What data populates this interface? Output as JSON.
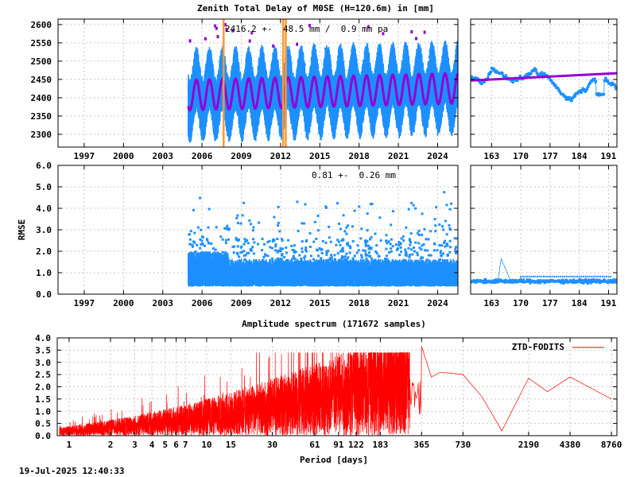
{
  "chart_data": [
    {
      "type": "scatter",
      "title": "Zenith Total Delay of M0SE (H=120.6m) in [mm]",
      "annotation": "2416.2 +-  48.5 mm /  0.9 mm pa",
      "xlabel": "",
      "ylabel": "",
      "xlim": [
        1995.0,
        2025.55
      ],
      "ylim": [
        2265,
        2615
      ],
      "x_ticks": [
        "1997",
        "2000",
        "2003",
        "2006",
        "2009",
        "2012",
        "2015",
        "2018",
        "2021",
        "2024"
      ],
      "y_ticks": [
        "2300",
        "2350",
        "2400",
        "2450",
        "2500",
        "2550",
        "2600"
      ],
      "data_start": 2004.95,
      "mean": 2416.2,
      "annual_amplitude": 48.5,
      "trend_per_year": 0.9,
      "series": [
        {
          "kind": "zenith-delay-samples",
          "color": "#1e90ff"
        },
        {
          "kind": "seasonal-fit",
          "color": "#9400d3"
        }
      ],
      "event_lines": [
        2007.65,
        2012.2,
        2012.4
      ],
      "event_color": "#ff9933"
    },
    {
      "type": "scatter",
      "title": "",
      "xlabel": "",
      "ylabel": "",
      "xlim": [
        158,
        193
      ],
      "ylim": [
        2265,
        2615
      ],
      "x_ticks": [
        "163",
        "170",
        "177",
        "184",
        "191"
      ],
      "trend_line": {
        "x": [
          158,
          193
        ],
        "y": [
          2447,
          2467
        ],
        "color": "#9400d3"
      },
      "color": "#1e90ff"
    },
    {
      "type": "scatter",
      "title": "",
      "annotation": "0.81 +-  0.26 mm",
      "xlabel": "",
      "ylabel": "RMSE",
      "xlim": [
        1995.0,
        2025.55
      ],
      "ylim": [
        0.0,
        6.0
      ],
      "x_ticks": [
        "1997",
        "2000",
        "2003",
        "2006",
        "2009",
        "2012",
        "2015",
        "2018",
        "2021",
        "2024"
      ],
      "y_ticks": [
        "0.0",
        "1.0",
        "2.0",
        "3.0",
        "4.0",
        "5.0",
        "6.0"
      ],
      "mean": 0.81,
      "std": 0.26,
      "color": "#1e90ff"
    },
    {
      "type": "scatter",
      "title": "",
      "xlabel": "",
      "ylabel": "",
      "xlim": [
        158,
        193
      ],
      "ylim": [
        0.0,
        6.0
      ],
      "x_ticks": [
        "163",
        "170",
        "177",
        "184",
        "191"
      ],
      "color": "#1e90ff"
    },
    {
      "type": "line",
      "title": "Amplitude spectrum (171672 samples)",
      "xlabel": "Period [days]",
      "ylabel": "",
      "x_scale": "log",
      "xlim": [
        0.82,
        9600
      ],
      "ylim": [
        0.0,
        4.0
      ],
      "x_ticks": [
        "1",
        "2",
        "3",
        "4",
        "5",
        "6",
        "7",
        "10",
        "15",
        "30",
        "61",
        "91",
        "122",
        "183",
        "365",
        "730",
        "2190",
        "4380",
        "8760"
      ],
      "y_ticks": [
        "0.0",
        "0.5",
        "1.0",
        "1.5",
        "2.0",
        "2.5",
        "3.0",
        "3.5",
        "4.0"
      ],
      "legend": "ZTD-FODITS",
      "legend_position": "top-right",
      "color": "#ff0000",
      "peaks": {
        "x": [
          365,
          430,
          500,
          730,
          1000,
          1400,
          2190,
          3000,
          4380,
          8760
        ],
        "y": [
          3.65,
          2.4,
          2.6,
          2.5,
          1.6,
          0.2,
          2.35,
          1.8,
          2.4,
          1.5
        ]
      }
    }
  ],
  "footer": {
    "timestamp": "19-Jul-2025 12:40:33"
  }
}
